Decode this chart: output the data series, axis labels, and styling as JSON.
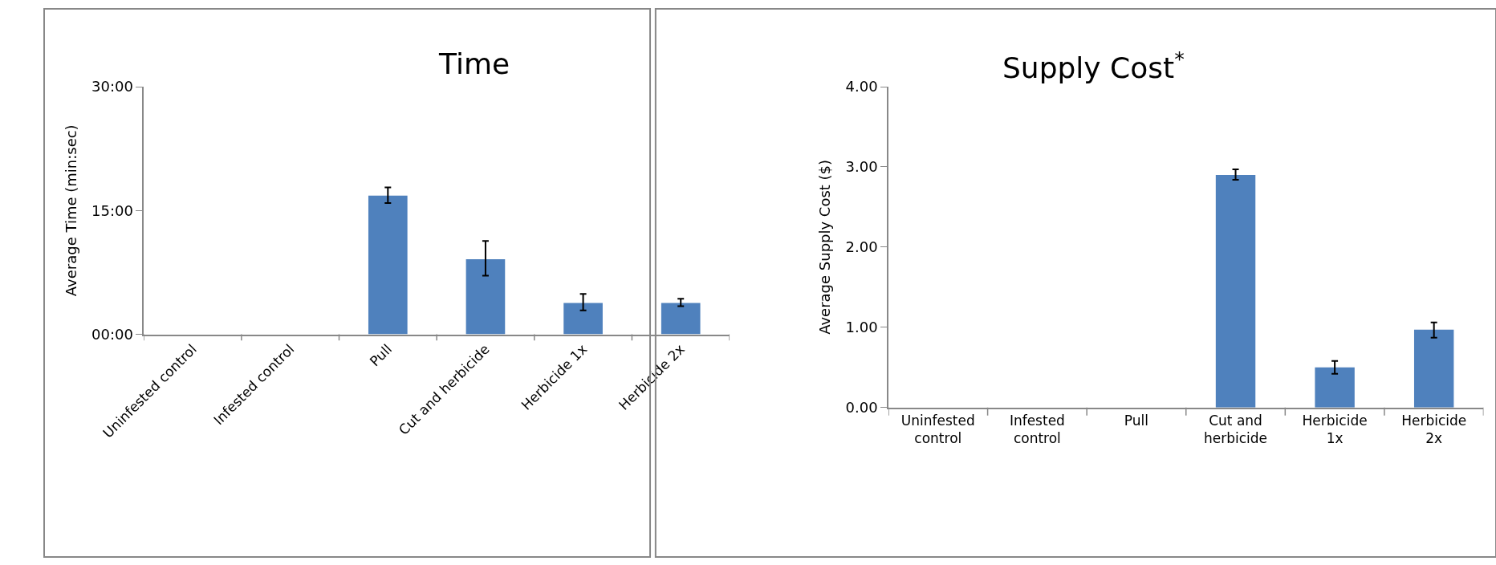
{
  "chart_data": [
    {
      "type": "bar",
      "title": "Time",
      "ylabel": "Average Time (min:sec)",
      "categories": [
        "Uninfested control",
        "Infested control",
        "Pull",
        "Cut and herbicide",
        "Herbicide 1x",
        "Herbicide 2x"
      ],
      "values": [
        null,
        null,
        16.8,
        9.1,
        3.8,
        3.8
      ],
      "errors": [
        null,
        null,
        [
          15.9,
          17.8
        ],
        [
          7.1,
          11.3
        ],
        [
          2.9,
          4.9
        ],
        [
          3.4,
          4.3
        ]
      ],
      "color": "#4f81bd",
      "ylim": [
        0,
        30
      ],
      "yticks": [
        {
          "value": 0,
          "label": "00:00"
        },
        {
          "value": 15,
          "label": "15:00"
        },
        {
          "value": 30,
          "label": "30:00"
        }
      ]
    },
    {
      "type": "bar",
      "title": "Supply Cost$^{*}$",
      "ylabel": "Average Supply Cost ($)",
      "categories": [
        "Uninfested\ncontrol",
        "Infested\ncontrol",
        "Pull",
        "Cut and\nherbicide",
        "Herbicide\n1x",
        "Herbicide\n2x"
      ],
      "values": [
        null,
        null,
        null,
        2.9,
        0.5,
        0.97
      ],
      "errors": [
        null,
        null,
        null,
        [
          2.84,
          2.97
        ],
        [
          0.42,
          0.58
        ],
        [
          0.87,
          1.06
        ]
      ],
      "color": "#4f81bd",
      "ylim": [
        0,
        4
      ],
      "yticks": [
        {
          "value": 0,
          "label": "0.00"
        },
        {
          "value": 1,
          "label": "1.00"
        },
        {
          "value": 2,
          "label": "2.00"
        },
        {
          "value": 3,
          "label": "3.00"
        },
        {
          "value": 4,
          "label": "4.00"
        }
      ]
    }
  ]
}
